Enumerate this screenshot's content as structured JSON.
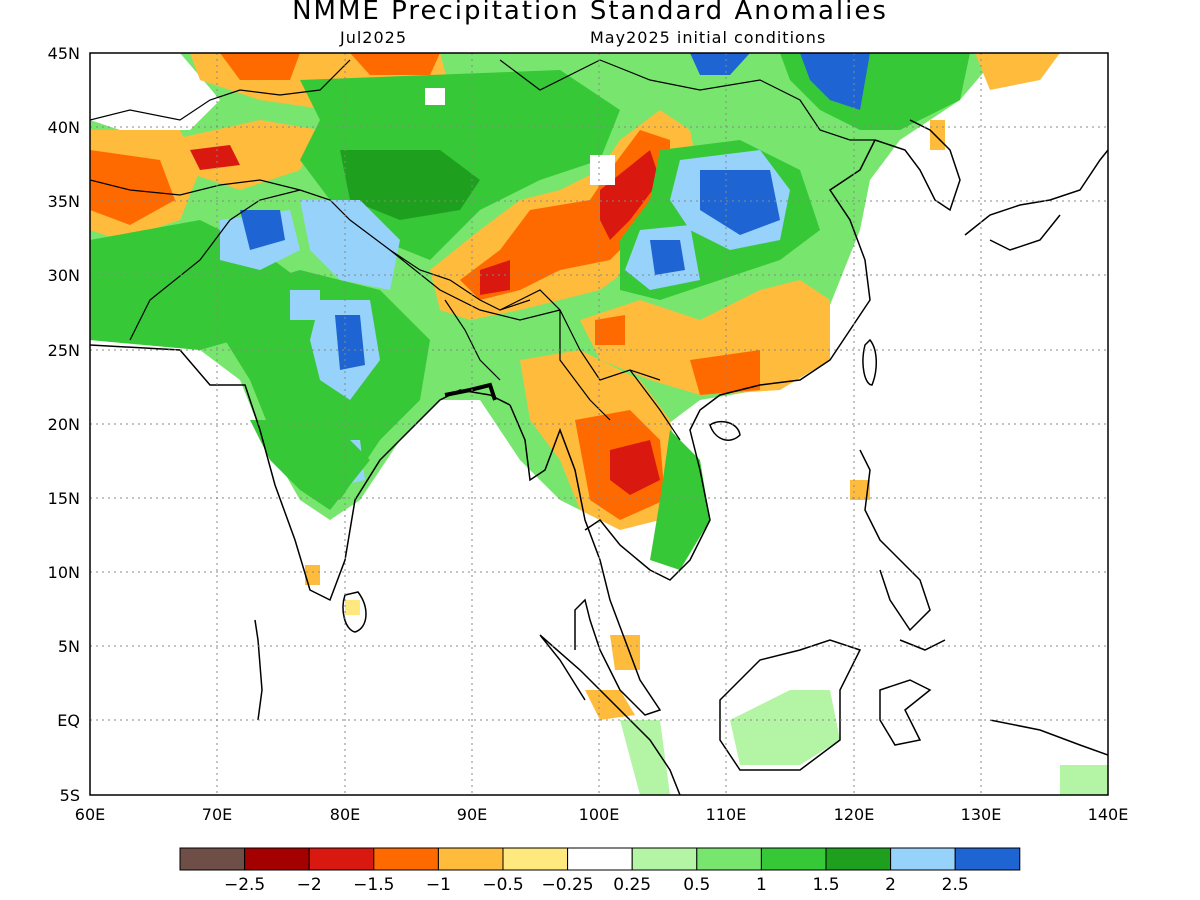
{
  "title": "NMME Precipitation Standard Anomalies",
  "subtitle_left": "Jul2025",
  "subtitle_right": "May2025 initial conditions",
  "map": {
    "lon_range": [
      60,
      140
    ],
    "lat_range": [
      -5,
      45
    ],
    "lat_ticks": [
      "45N",
      "40N",
      "35N",
      "30N",
      "25N",
      "20N",
      "15N",
      "10N",
      "5N",
      "EQ",
      "5S"
    ],
    "lon_ticks": [
      "60E",
      "70E",
      "80E",
      "90E",
      "100E",
      "110E",
      "120E",
      "130E",
      "140E"
    ],
    "gridlines": "dotted"
  },
  "colorbar": {
    "colors": [
      "#6e4e46",
      "#a50000",
      "#d9190f",
      "#ff6a00",
      "#ffbb3c",
      "#ffe87d",
      "#ffffff",
      "#b4f5a5",
      "#78e66e",
      "#36c836",
      "#1ea01e",
      "#96d2fa",
      "#1e64d2"
    ],
    "labels": [
      "−2.5",
      "−2",
      "−1.5",
      "−1",
      "−0.5",
      "−0.25",
      "0.25",
      "0.5",
      "1",
      "1.5",
      "2",
      "2.5"
    ]
  }
}
